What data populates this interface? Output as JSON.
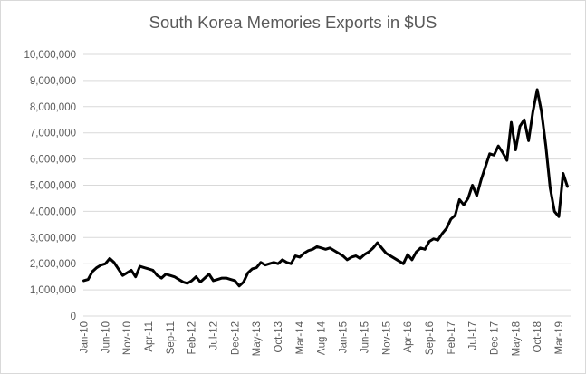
{
  "chart_data": {
    "type": "line",
    "title": "South Korea Memories Exports in $US",
    "xlabel": "",
    "ylabel": "",
    "ylim": [
      0,
      10000000
    ],
    "grid": true,
    "legend": "none",
    "line_color": "#000000",
    "y_ticks": [
      "0",
      "1,000,000",
      "2,000,000",
      "3,000,000",
      "4,000,000",
      "5,000,000",
      "6,000,000",
      "7,000,000",
      "8,000,000",
      "9,000,000",
      "10,000,000"
    ],
    "x_tick_labels": [
      "Jan-10",
      "Jun-10",
      "Nov-10",
      "Apr-11",
      "Sep-11",
      "Feb-12",
      "Jul-12",
      "Dec-12",
      "May-13",
      "Oct-13",
      "Mar-14",
      "Aug-14",
      "Jan-15",
      "Jun-15",
      "Nov-15",
      "Apr-16",
      "Sep-16",
      "Feb-17",
      "Jul-17",
      "Dec-17",
      "May-18",
      "Oct-18",
      "Mar-19"
    ],
    "series": [
      {
        "values": [
          1350000,
          1400000,
          1700000,
          1850000,
          1950000,
          2000000,
          2200000,
          2050000,
          1800000,
          1550000,
          1650000,
          1750000,
          1500000,
          1900000,
          1850000,
          1800000,
          1750000,
          1550000,
          1450000,
          1600000,
          1550000,
          1500000,
          1400000,
          1300000,
          1250000,
          1350000,
          1500000,
          1300000,
          1450000,
          1600000,
          1350000,
          1400000,
          1450000,
          1450000,
          1400000,
          1350000,
          1150000,
          1300000,
          1650000,
          1800000,
          1850000,
          2050000,
          1950000,
          2000000,
          2050000,
          2000000,
          2150000,
          2050000,
          2000000,
          2300000,
          2250000,
          2400000,
          2500000,
          2550000,
          2650000,
          2600000,
          2550000,
          2600000,
          2500000,
          2400000,
          2300000,
          2150000,
          2250000,
          2300000,
          2200000,
          2350000,
          2450000,
          2600000,
          2800000,
          2600000,
          2400000,
          2300000,
          2200000,
          2100000,
          2000000,
          2350000,
          2150000,
          2450000,
          2600000,
          2550000,
          2850000,
          2950000,
          2900000,
          3150000,
          3350000,
          3700000,
          3850000,
          4450000,
          4250000,
          4500000,
          5000000,
          4600000,
          5200000,
          5700000,
          6200000,
          6150000,
          6500000,
          6250000,
          5950000,
          7400000,
          6350000,
          7250000,
          7500000,
          6700000,
          7800000,
          8650000,
          7800000,
          6500000,
          4900000,
          4000000,
          3800000,
          5450000,
          4950000
        ]
      }
    ]
  }
}
